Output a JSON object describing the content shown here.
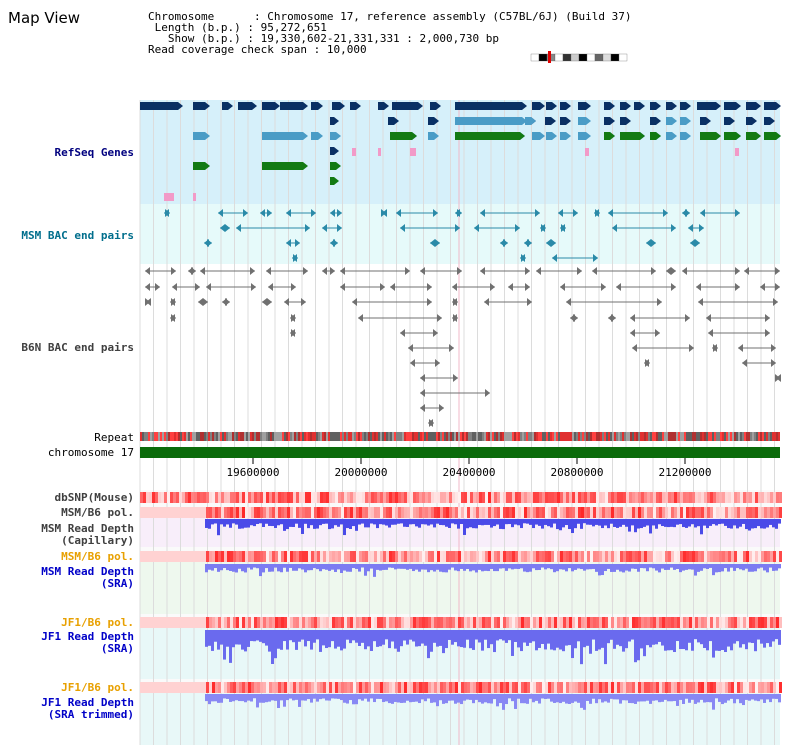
{
  "page": {
    "title": "Map View"
  },
  "info": {
    "chromosome_label": "Chromosome",
    "chromosome_value": "Chromosome 17, reference assembly (C57BL/6J) (Build 37)",
    "length_label": "Length (b.p.)",
    "length_value": "95,272,651",
    "show_label": "Show (b.p.)",
    "show_value": "19,330,602-21,331,331 : 2,000,730 bp",
    "coverage_label": "Read coverage check span",
    "coverage_value": "10,000"
  },
  "tracks": {
    "refseq": "RefSeq Genes",
    "msm_bac": "MSM BAC end pairs",
    "b6n_bac": "B6N BAC end pairs",
    "repeat": "Repeat",
    "chromosome": "chromosome 17",
    "dbsnp": "dbSNP(Mouse)",
    "msm_b6_pol_1": "MSM/B6 pol.",
    "msm_read_depth_cap_1": "MSM Read Depth",
    "msm_read_depth_cap_2": "(Capillary)",
    "msm_b6_pol_2": "MSM/B6 pol.",
    "msm_read_depth_sra_1": "MSM Read Depth",
    "msm_read_depth_sra_2": "(SRA)",
    "jf1_b6_pol_1": "JF1/B6 pol.",
    "jf1_read_depth_sra_1": "JF1 Read Depth",
    "jf1_read_depth_sra_2": "(SRA)",
    "jf1_b6_pol_2": "JF1/B6 pol.",
    "jf1_read_depth_trim_1": "JF1 Read Depth",
    "jf1_read_depth_trim_2": "(SRA trimmed)"
  },
  "axis": {
    "ticks": [
      "19600000",
      "20000000",
      "20400000",
      "20800000",
      "21200000"
    ]
  },
  "colors": {
    "refseq_bg": "#d6f0fa",
    "bac_bg": "#e6fafa",
    "gene_navy": "#0a3064",
    "gene_blue": "#4a9cc6",
    "gene_green": "#137a13",
    "gene_pink": "#f29ac8",
    "chromosome_bar": "#0b6b0b",
    "depth_blue": "#5a5aee",
    "pol_red": "#e03030"
  }
}
